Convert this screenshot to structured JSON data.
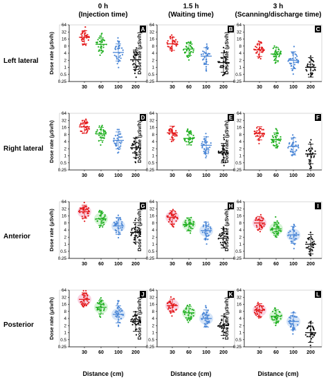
{
  "figure": {
    "columns": [
      {
        "line1": "0 h",
        "line2": "(Injection time)"
      },
      {
        "line1": "1.5 h",
        "line2": "(Waiting time)"
      },
      {
        "line1": "3 h",
        "line2": "(Scanning/discharge time)"
      }
    ],
    "rows": [
      "Left lateral",
      "Right lateral",
      "Anterior",
      "Posterior"
    ],
    "ylabel": "Dose rate (μSv/h)",
    "xlabel": "Distance (cm)"
  },
  "chart_data": [
    {
      "type": "scatter",
      "panel": "A",
      "row": "Left lateral",
      "column": "0 h",
      "categories": [
        "30",
        "60",
        "100",
        "200"
      ],
      "ylabel": "Dose rate (μSv/h)",
      "xlabel": "Distance (cm)",
      "yscale": "log2",
      "ylim": [
        0.25,
        64
      ],
      "yticks": [
        "0.25",
        "0.5",
        "1",
        "2",
        "4",
        "8",
        "16",
        "32",
        "64"
      ],
      "medians": [
        19,
        9.5,
        4.3,
        2.1
      ]
    },
    {
      "type": "scatter",
      "panel": "B",
      "row": "Left lateral",
      "column": "1.5 h",
      "categories": [
        "30",
        "60",
        "100",
        "200"
      ],
      "ylabel": "Dose rate (μSv/h)",
      "xlabel": "Distance (cm)",
      "yscale": "log2",
      "ylim": [
        0.25,
        64
      ],
      "yticks": [
        "0.25",
        "0.5",
        "1",
        "2",
        "4",
        "8",
        "16",
        "32",
        "64"
      ],
      "medians": [
        10,
        6,
        3,
        1.6
      ]
    },
    {
      "type": "scatter",
      "panel": "C",
      "row": "Left lateral",
      "column": "3 h",
      "categories": [
        "30",
        "60",
        "100",
        "200"
      ],
      "ylabel": "Dose rate (μSv/h)",
      "xlabel": "Distance (cm)",
      "yscale": "log2",
      "ylim": [
        0.25,
        64
      ],
      "yticks": [
        "0.25",
        "0.5",
        "1",
        "2",
        "4",
        "8",
        "16",
        "32",
        "64"
      ],
      "medians": [
        5.5,
        3.7,
        2,
        1
      ]
    },
    {
      "type": "scatter",
      "panel": "D",
      "row": "Right lateral",
      "column": "0 h",
      "categories": [
        "30",
        "60",
        "100",
        "200"
      ],
      "ylabel": "Dose rate (μSv/h)",
      "xlabel": "Distance (cm)",
      "yscale": "log2",
      "ylim": [
        0.25,
        64
      ],
      "yticks": [
        "0.25",
        "0.5",
        "1",
        "2",
        "4",
        "8",
        "16",
        "32",
        "64"
      ],
      "medians": [
        17,
        8.5,
        4.5,
        2.2
      ]
    },
    {
      "type": "scatter",
      "panel": "E",
      "row": "Right lateral",
      "column": "1.5 h",
      "categories": [
        "30",
        "60",
        "100",
        "200"
      ],
      "ylabel": "Dose rate (μSv/h)",
      "xlabel": "Distance (cm)",
      "yscale": "log2",
      "ylim": [
        0.25,
        64
      ],
      "yticks": [
        "0.25",
        "0.5",
        "1",
        "2",
        "4",
        "8",
        "16",
        "32",
        "64"
      ],
      "medians": [
        9.5,
        5.5,
        2.8,
        1.3
      ]
    },
    {
      "type": "scatter",
      "panel": "F",
      "row": "Right lateral",
      "column": "3 h",
      "categories": [
        "30",
        "60",
        "100",
        "200"
      ],
      "ylabel": "Dose rate (μSv/h)",
      "xlabel": "Distance (cm)",
      "yscale": "log2",
      "ylim": [
        0.25,
        64
      ],
      "yticks": [
        "0.25",
        "0.5",
        "1",
        "2",
        "4",
        "8",
        "16",
        "32",
        "64"
      ],
      "medians": [
        9,
        5,
        2.5,
        1.2
      ]
    },
    {
      "type": "scatter",
      "panel": "G",
      "row": "Anterior",
      "column": "0 h",
      "categories": [
        "30",
        "60",
        "100",
        "200"
      ],
      "ylabel": "Dose rate (μSv/h)",
      "xlabel": "Distance (cm)",
      "yscale": "log2",
      "ylim": [
        0.25,
        64
      ],
      "yticks": [
        "0.25",
        "0.5",
        "1",
        "2",
        "4",
        "8",
        "16",
        "32",
        "64"
      ],
      "medians": [
        24,
        12,
        6,
        3.2
      ]
    },
    {
      "type": "scatter",
      "panel": "H",
      "row": "Anterior",
      "column": "1.5 h",
      "categories": [
        "30",
        "60",
        "100",
        "200"
      ],
      "ylabel": "Dose rate (μSv/h)",
      "xlabel": "Distance (cm)",
      "yscale": "log2",
      "ylim": [
        0.25,
        64
      ],
      "yticks": [
        "0.25",
        "0.5",
        "1",
        "2",
        "4",
        "8",
        "16",
        "32",
        "64"
      ],
      "medians": [
        14,
        7,
        3.8,
        1.8
      ]
    },
    {
      "type": "scatter",
      "panel": "I",
      "row": "Anterior",
      "column": "3 h",
      "categories": [
        "30",
        "60",
        "100",
        "200"
      ],
      "ylabel": "Dose rate (μSv/h)",
      "xlabel": "Distance (cm)",
      "yscale": "log2",
      "ylim": [
        0.25,
        64
      ],
      "yticks": [
        "0.25",
        "0.5",
        "1",
        "2",
        "4",
        "8",
        "16",
        "32",
        "64"
      ],
      "medians": [
        8,
        4.5,
        2.5,
        1
      ]
    },
    {
      "type": "scatter",
      "panel": "J",
      "row": "Posterior",
      "column": "0 h",
      "categories": [
        "30",
        "60",
        "100",
        "200"
      ],
      "ylabel": "Dose rate (μSv/h)",
      "xlabel": "Distance (cm)",
      "yscale": "log2",
      "ylim": [
        0.25,
        64
      ],
      "yticks": [
        "0.25",
        "0.5",
        "1",
        "2",
        "4",
        "8",
        "16",
        "32",
        "64"
      ],
      "medians": [
        26,
        12,
        6,
        3
      ]
    },
    {
      "type": "scatter",
      "panel": "K",
      "row": "Posterior",
      "column": "1.5 h",
      "categories": [
        "30",
        "60",
        "100",
        "200"
      ],
      "ylabel": "Dose rate (μSv/h)",
      "xlabel": "Distance (cm)",
      "yscale": "log2",
      "ylim": [
        0.25,
        64
      ],
      "yticks": [
        "0.25",
        "0.5",
        "1",
        "2",
        "4",
        "8",
        "16",
        "32",
        "64"
      ],
      "medians": [
        14,
        7,
        4,
        2
      ]
    },
    {
      "type": "scatter",
      "panel": "L",
      "row": "Posterior",
      "column": "3 h",
      "categories": [
        "30",
        "60",
        "100",
        "200"
      ],
      "ylabel": "Dose rate (μSv/h)",
      "xlabel": "Distance (cm)",
      "yscale": "log2",
      "ylim": [
        0.25,
        64
      ],
      "yticks": [
        "0.25",
        "0.5",
        "1",
        "2",
        "4",
        "8",
        "16",
        "32",
        "64"
      ],
      "medians": [
        9,
        5,
        3,
        1
      ]
    }
  ],
  "colors": {
    "30": "#e41a1c",
    "60": "#22b022",
    "100": "#4a86d6",
    "200": "#111111",
    "tint30": "#f5c6d9",
    "tint60": "#c8f0c8",
    "tint100": "#c8dcf5"
  }
}
